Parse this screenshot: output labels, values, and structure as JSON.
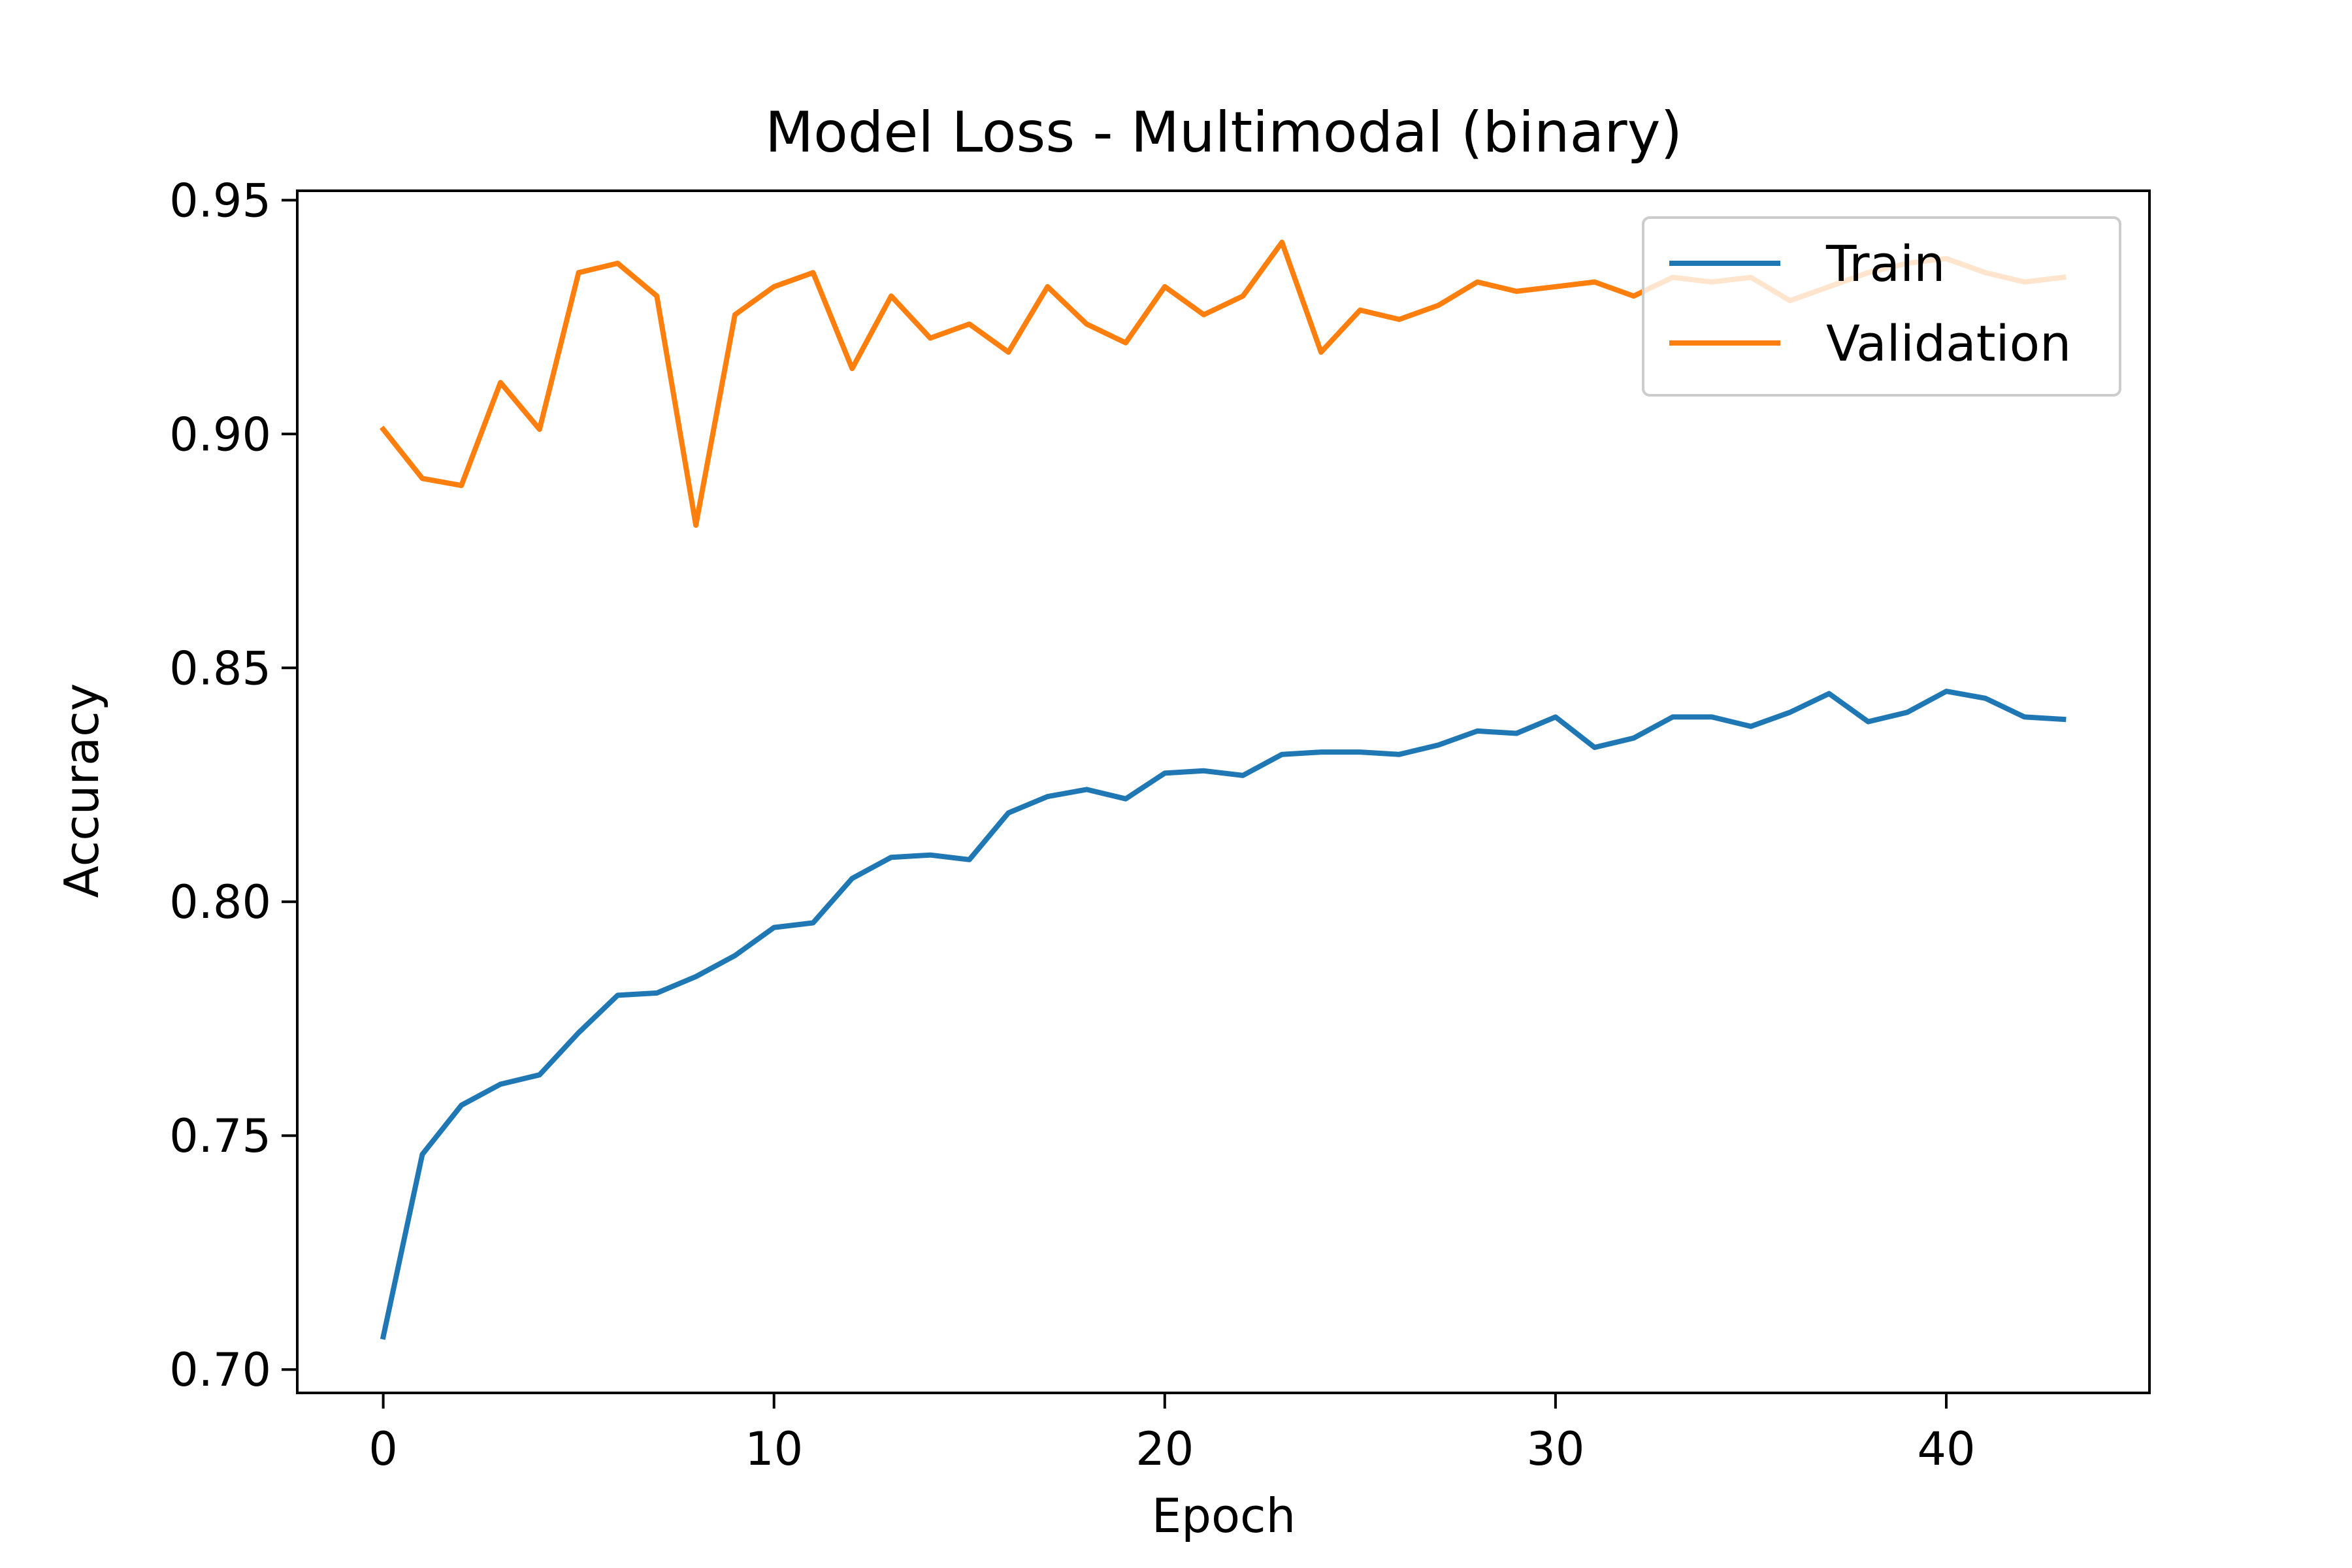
{
  "chart_data": {
    "type": "line",
    "title": "Model Loss - Multimodal (binary)",
    "xlabel": "Epoch",
    "ylabel": "Accuracy",
    "xlim": [
      -2.2,
      45.2
    ],
    "ylim": [
      0.695,
      0.952
    ],
    "xticks": [
      0,
      10,
      20,
      30,
      40
    ],
    "yticks": [
      0.7,
      0.75,
      0.8,
      0.85,
      0.9,
      0.95
    ],
    "ytick_labels": [
      "0.70",
      "0.75",
      "0.80",
      "0.85",
      "0.90",
      "0.95"
    ],
    "grid": false,
    "legend_position": "top-right",
    "x": [
      0,
      1,
      2,
      3,
      4,
      5,
      6,
      7,
      8,
      9,
      10,
      11,
      12,
      13,
      14,
      15,
      16,
      17,
      18,
      19,
      20,
      21,
      22,
      23,
      24,
      25,
      26,
      27,
      28,
      29,
      30,
      31,
      32,
      33,
      34,
      35,
      36,
      37,
      38,
      39,
      40,
      41,
      42,
      43
    ],
    "series": [
      {
        "name": "Train",
        "color": "#1f77b4",
        "values": [
          0.707,
          0.746,
          0.7565,
          0.761,
          0.763,
          0.772,
          0.78,
          0.7805,
          0.784,
          0.7885,
          0.7945,
          0.7955,
          0.805,
          0.8095,
          0.81,
          0.809,
          0.819,
          0.8225,
          0.824,
          0.822,
          0.8275,
          0.828,
          0.827,
          0.8315,
          0.832,
          0.832,
          0.8315,
          0.8335,
          0.8365,
          0.836,
          0.8395,
          0.833,
          0.835,
          0.8395,
          0.8395,
          0.8375,
          0.8405,
          0.8445,
          0.8385,
          0.8405,
          0.845,
          0.8435,
          0.8395,
          0.839
        ]
      },
      {
        "name": "Validation",
        "color": "#ff7f0e",
        "values": [
          0.901,
          0.8905,
          0.889,
          0.911,
          0.901,
          0.9345,
          0.9365,
          0.9295,
          0.8805,
          0.9255,
          0.9315,
          0.9345,
          0.914,
          0.9295,
          0.9205,
          0.9235,
          0.9175,
          0.9315,
          0.9235,
          0.9195,
          0.9315,
          0.9255,
          0.9295,
          0.941,
          0.9175,
          0.9265,
          0.9245,
          0.9275,
          0.9325,
          0.9305,
          0.9315,
          0.9325,
          0.9295,
          0.9335,
          0.9325,
          0.9335,
          0.9285,
          0.9315,
          0.9345,
          0.9365,
          0.9375,
          0.9345,
          0.9325,
          0.9335
        ]
      }
    ]
  }
}
